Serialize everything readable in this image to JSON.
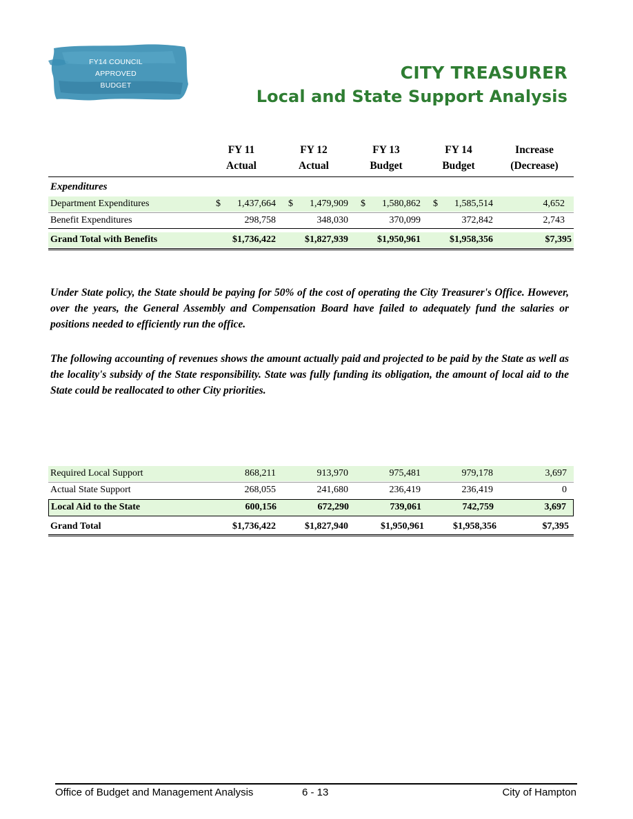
{
  "badge": {
    "lines": [
      "FY14 COUNCIL",
      "APPROVED",
      "BUDGET"
    ],
    "color": "#3a8fb4"
  },
  "header": {
    "title": "CITY TREASURER",
    "subtitle": "Local and State Support Analysis",
    "title_color": "#2e7d32"
  },
  "table1": {
    "columns": [
      {
        "line1": "FY 11",
        "line2": "Actual"
      },
      {
        "line1": "FY 12",
        "line2": "Actual"
      },
      {
        "line1": "FY 13",
        "line2": "Budget"
      },
      {
        "line1": "FY 14",
        "line2": "Budget"
      },
      {
        "line1": "Increase",
        "line2": "(Decrease)"
      }
    ],
    "section_label": "Expenditures",
    "currency_symbol": "$",
    "rows": [
      {
        "label": "Department Expenditures",
        "values": [
          "1,437,664",
          "1,479,909",
          "1,580,862",
          "1,585,514",
          "4,652"
        ]
      },
      {
        "label": "Benefit Expenditures",
        "values": [
          "298,758",
          "348,030",
          "370,099",
          "372,842",
          "2,743"
        ]
      }
    ],
    "total": {
      "label": "Grand Total with Benefits",
      "values": [
        "$1,736,422",
        "$1,827,939",
        "$1,950,961",
        "$1,958,356",
        "$7,395"
      ]
    }
  },
  "paragraphs": [
    "Under State policy, the State should be paying for 50% of the cost of operating the City Treasurer's Office. However, over the years, the General Assembly and Compensation Board have failed to adequately fund the salaries or positions needed to efficiently run the office.",
    "The following accounting of revenues shows the amount actually paid and projected to be paid by the State as well as the locality's subsidy of the State responsibility. State was fully funding its obligation, the amount of local aid to the State could be reallocated to other City priorities."
  ],
  "table2": {
    "rows": [
      {
        "label": "Required Local Support",
        "values": [
          "868,211",
          "913,970",
          "975,481",
          "979,178",
          "3,697"
        ]
      },
      {
        "label": "Actual State Support",
        "values": [
          "268,055",
          "241,680",
          "236,419",
          "236,419",
          "0"
        ]
      },
      {
        "label": "Local Aid to the State",
        "values": [
          "600,156",
          "672,290",
          "739,061",
          "742,759",
          "3,697"
        ]
      }
    ],
    "total": {
      "label": "Grand Total",
      "values": [
        "$1,736,422",
        "$1,827,940",
        "$1,950,961",
        "$1,958,356",
        "$7,395"
      ]
    }
  },
  "footer": {
    "left": "Office of Budget and Management Analysis",
    "center": "6 - 13",
    "right": "City of Hampton"
  }
}
